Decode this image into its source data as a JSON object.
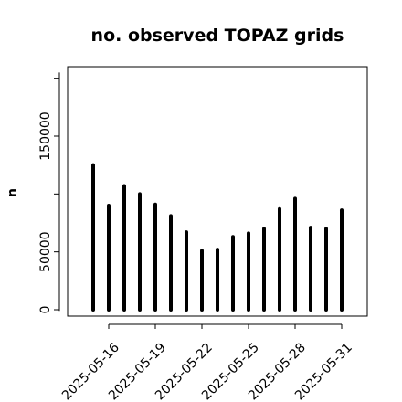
{
  "chart_data": {
    "type": "bar",
    "title": "no. observed TOPAZ grids",
    "ylabel": "n",
    "xlabel": "",
    "ylim": [
      -1000,
      205000
    ],
    "yticks": [
      0,
      50000,
      150000
    ],
    "ytick_labels": [
      "0",
      "50000",
      "150000"
    ],
    "x_label_dates": [
      "2025-05-16",
      "2025-05-19",
      "2025-05-22",
      "2025-05-25",
      "2025-05-28",
      "2025-05-31"
    ],
    "highlight_color": "#228B22",
    "highlight_date": "2025-05-22",
    "bar_color": "#000000",
    "x": [
      "2025-05-15",
      "2025-05-16",
      "2025-05-17",
      "2025-05-18",
      "2025-05-19",
      "2025-05-20",
      "2025-05-21",
      "2025-05-22",
      "2025-05-23",
      "2025-05-24",
      "2025-05-25",
      "2025-05-26",
      "2025-05-27",
      "2025-05-28",
      "2025-05-29",
      "2025-05-30",
      "2025-05-31"
    ],
    "values": [
      125000,
      90000,
      107000,
      100000,
      91000,
      81000,
      67000,
      51000,
      52000,
      63000,
      66000,
      70000,
      87000,
      96000,
      71000,
      70000,
      86000
    ],
    "grid": false,
    "legend": "none"
  }
}
